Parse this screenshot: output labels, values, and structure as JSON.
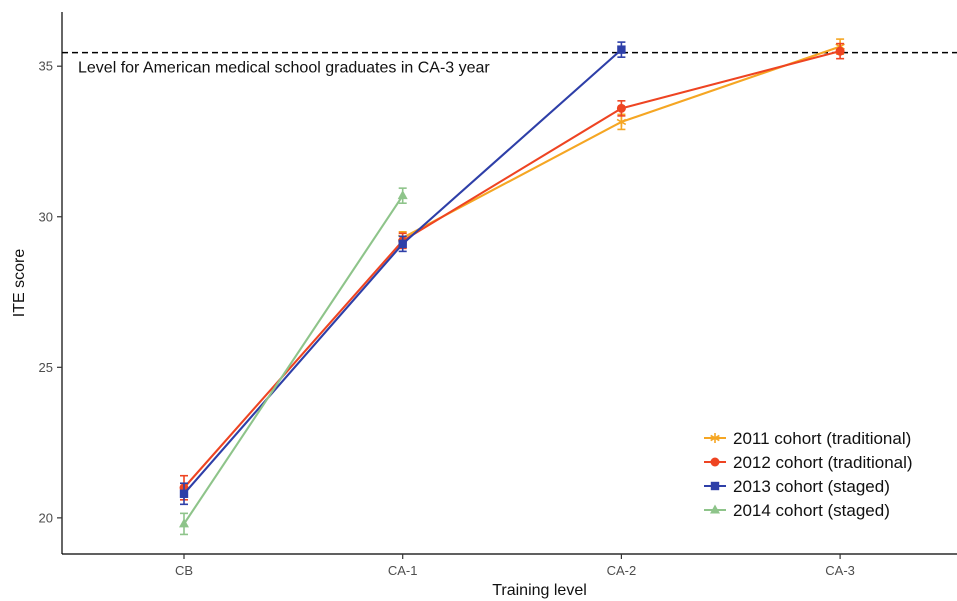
{
  "chart_data": {
    "type": "line",
    "title": "",
    "xlabel": "Training level",
    "ylabel": "ITE score",
    "categories": [
      "CB",
      "CA-1",
      "CA-2",
      "CA-3"
    ],
    "ylim": [
      18.8,
      36.8
    ],
    "yticks": [
      "20",
      "25",
      "30",
      "35"
    ],
    "grid": false,
    "legend_position": "bottom-right",
    "reference_line": {
      "y": 35.45,
      "style": "dashed",
      "label": "Level for American medical school graduates in CA-3 year"
    },
    "series": [
      {
        "name": "2011 cohort (traditional)",
        "color": "#f5a623",
        "marker": "asterisk",
        "points": [
          {
            "x": "CA-1",
            "y": 29.3,
            "err_low": 29.1,
            "err_high": 29.5
          },
          {
            "x": "CA-2",
            "y": 33.15,
            "err_low": 32.9,
            "err_high": 33.4
          },
          {
            "x": "CA-3",
            "y": 35.65,
            "err_low": 35.4,
            "err_high": 35.9
          }
        ]
      },
      {
        "name": "2012 cohort (traditional)",
        "color": "#ee4422",
        "marker": "circle",
        "points": [
          {
            "x": "CB",
            "y": 21.0,
            "err_low": 20.6,
            "err_high": 21.4
          },
          {
            "x": "CA-1",
            "y": 29.2,
            "err_low": 28.95,
            "err_high": 29.45
          },
          {
            "x": "CA-2",
            "y": 33.6,
            "err_low": 33.35,
            "err_high": 33.85
          },
          {
            "x": "CA-3",
            "y": 35.5,
            "err_low": 35.25,
            "err_high": 35.75
          }
        ]
      },
      {
        "name": "2013 cohort (staged)",
        "color": "#2e3fa8",
        "marker": "square",
        "points": [
          {
            "x": "CB",
            "y": 20.8,
            "err_low": 20.45,
            "err_high": 21.15
          },
          {
            "x": "CA-1",
            "y": 29.1,
            "err_low": 28.85,
            "err_high": 29.35
          },
          {
            "x": "CA-2",
            "y": 35.55,
            "err_low": 35.3,
            "err_high": 35.8
          }
        ]
      },
      {
        "name": "2014 cohort (staged)",
        "color": "#8ec48a",
        "marker": "triangle",
        "points": [
          {
            "x": "CB",
            "y": 19.8,
            "err_low": 19.45,
            "err_high": 20.15
          },
          {
            "x": "CA-1",
            "y": 30.7,
            "err_low": 30.45,
            "err_high": 30.95
          }
        ]
      }
    ]
  }
}
